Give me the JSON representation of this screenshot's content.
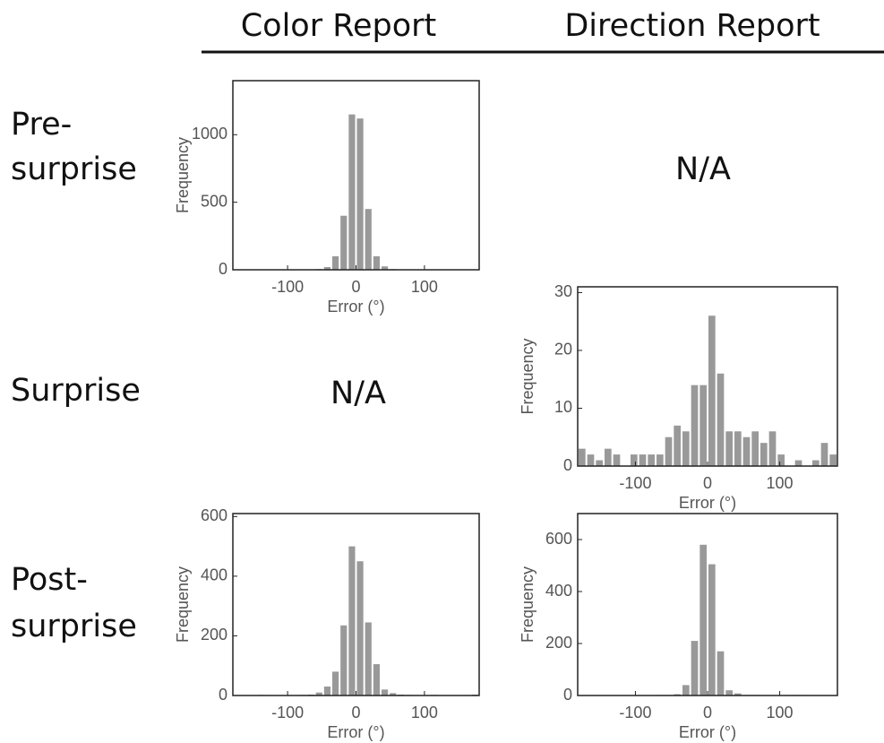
{
  "column_headers": [
    "Color Report",
    "Direction Report"
  ],
  "row_labels": [
    [
      "Pre-",
      "surprise"
    ],
    [
      "Surprise"
    ],
    [
      "Post-",
      "surprise"
    ]
  ],
  "na_labels": [
    "N/A",
    "N/A"
  ],
  "chart_data": [
    {
      "type": "histogram",
      "xlabel": "Error (°)",
      "ylabel": "Frequency",
      "color": "#999999",
      "bins": [
        -180,
        -168,
        -156,
        -144,
        -132,
        -120,
        -108,
        -96,
        -84,
        -72,
        -60,
        -48,
        -36,
        -24,
        -12,
        0,
        12,
        24,
        36,
        48,
        60,
        72,
        84,
        96,
        108,
        120,
        132,
        144,
        156,
        168,
        180
      ],
      "values": [
        0,
        0,
        0,
        0,
        0,
        0,
        0,
        0,
        0,
        0,
        5,
        20,
        100,
        400,
        1150,
        1120,
        450,
        100,
        25,
        5,
        0,
        0,
        0,
        0,
        0,
        0,
        0,
        0,
        0,
        0
      ],
      "xlim": [
        -180,
        180
      ],
      "xticks": [
        -100,
        0,
        100
      ],
      "ylim": [
        0,
        1400
      ],
      "yticks": [
        0,
        500,
        1000
      ]
    },
    {
      "type": "histogram",
      "xlabel": "Error (°)",
      "ylabel": "Frequency",
      "color": "#999999",
      "bins": [
        -180,
        -168,
        -156,
        -144,
        -132,
        -120,
        -108,
        -96,
        -84,
        -72,
        -60,
        -48,
        -36,
        -24,
        -12,
        0,
        12,
        24,
        36,
        48,
        60,
        72,
        84,
        96,
        108,
        120,
        132,
        144,
        156,
        168,
        180
      ],
      "values": [
        3,
        2,
        1,
        3,
        2,
        0,
        2,
        2,
        2,
        2,
        5,
        7,
        6,
        14,
        14,
        26,
        16,
        6,
        6,
        5,
        6,
        4,
        6,
        2,
        0,
        1,
        0,
        1,
        4,
        2
      ],
      "xlim": [
        -180,
        180
      ],
      "xticks": [
        -100,
        0,
        100
      ],
      "ylim": [
        0,
        31
      ],
      "yticks": [
        0,
        10,
        20,
        30
      ]
    },
    {
      "type": "histogram",
      "xlabel": "Error (°)",
      "ylabel": "Frequency",
      "color": "#999999",
      "bins": [
        -180,
        -168,
        -156,
        -144,
        -132,
        -120,
        -108,
        -96,
        -84,
        -72,
        -60,
        -48,
        -36,
        -24,
        -12,
        0,
        12,
        24,
        36,
        48,
        60,
        72,
        84,
        96,
        108,
        120,
        132,
        144,
        156,
        168,
        180
      ],
      "values": [
        0,
        0,
        0,
        2,
        0,
        0,
        0,
        0,
        2,
        3,
        10,
        30,
        80,
        235,
        500,
        450,
        245,
        105,
        20,
        8,
        3,
        2,
        0,
        0,
        2,
        0,
        0,
        0,
        0,
        3
      ],
      "xlim": [
        -180,
        180
      ],
      "xticks": [
        -100,
        0,
        100
      ],
      "ylim": [
        0,
        610
      ],
      "yticks": [
        0,
        200,
        400,
        600
      ]
    },
    {
      "type": "histogram",
      "xlabel": "Error (°)",
      "ylabel": "Frequency",
      "color": "#999999",
      "bins": [
        -180,
        -168,
        -156,
        -144,
        -132,
        -120,
        -108,
        -96,
        -84,
        -72,
        -60,
        -48,
        -36,
        -24,
        -12,
        0,
        12,
        24,
        36,
        48,
        60,
        72,
        84,
        96,
        108,
        120,
        132,
        144,
        156,
        168,
        180
      ],
      "values": [
        0,
        0,
        0,
        0,
        0,
        0,
        0,
        0,
        0,
        2,
        2,
        5,
        40,
        210,
        580,
        505,
        170,
        20,
        8,
        2,
        2,
        0,
        0,
        0,
        2,
        2,
        0,
        0,
        0,
        0
      ],
      "xlim": [
        -180,
        180
      ],
      "xticks": [
        -100,
        0,
        100
      ],
      "ylim": [
        0,
        700
      ],
      "yticks": [
        0,
        200,
        400,
        600
      ]
    }
  ]
}
